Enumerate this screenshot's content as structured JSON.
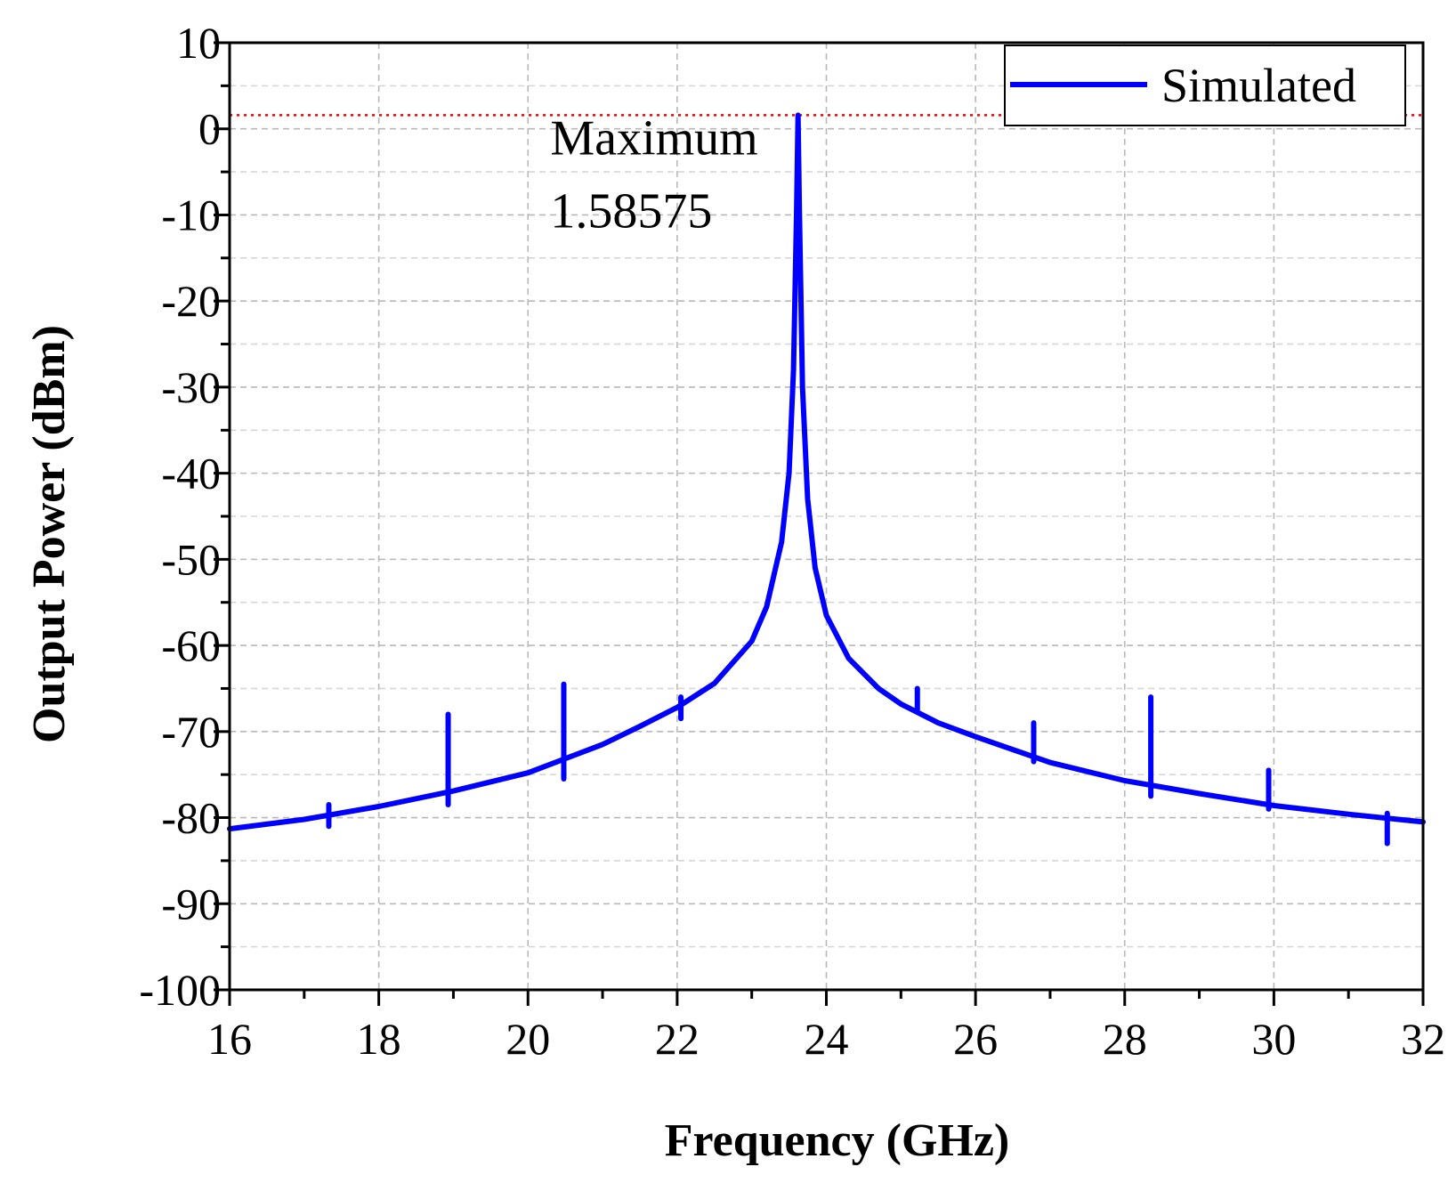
{
  "chart_data": {
    "type": "line",
    "title": "",
    "xlabel": "Frequency (GHz)",
    "ylabel": "Output Power (dBm)",
    "xlim": [
      16,
      32
    ],
    "ylim": [
      -100,
      10
    ],
    "xticks": [
      16,
      18,
      20,
      22,
      24,
      26,
      28,
      30,
      32
    ],
    "yticks": [
      10,
      0,
      -10,
      -20,
      -30,
      -40,
      -50,
      -60,
      -70,
      -80,
      -90,
      -100
    ],
    "xtick_labels": [
      "16",
      "18",
      "20",
      "22",
      "24",
      "26",
      "28",
      "30",
      "32"
    ],
    "ytick_labels": [
      "10",
      "0",
      "-10",
      "-20",
      "-30",
      "-40",
      "-50",
      "-60",
      "-70",
      "-80",
      "-90",
      "-100"
    ],
    "grid": true,
    "legend": {
      "position": "top-right",
      "entries": [
        "Simulated"
      ]
    },
    "series": [
      {
        "name": "Simulated",
        "color": "#0000ff",
        "peak": {
          "x": 23.62,
          "y": 1.58575
        },
        "x": [
          16.0,
          17.0,
          18.0,
          19.0,
          20.0,
          21.0,
          21.5,
          22.0,
          22.5,
          23.0,
          23.2,
          23.4,
          23.5,
          23.56,
          23.6,
          23.62,
          23.64,
          23.68,
          23.75,
          23.85,
          24.0,
          24.3,
          24.7,
          25.0,
          25.5,
          26.0,
          27.0,
          28.0,
          29.0,
          30.0,
          31.0,
          32.0
        ],
        "y": [
          -81.3,
          -80.2,
          -78.7,
          -76.9,
          -74.8,
          -71.5,
          -69.4,
          -67.2,
          -64.4,
          -59.5,
          -55.5,
          -48.0,
          -40.0,
          -28.0,
          -10.0,
          1.58575,
          -10.0,
          -30.0,
          -43.0,
          -51.0,
          -56.5,
          -61.5,
          -65.0,
          -66.8,
          -69.0,
          -70.6,
          -73.6,
          -75.7,
          -77.2,
          -78.6,
          -79.6,
          -80.5
        ]
      }
    ],
    "spikes": [
      {
        "x": 17.33,
        "top": -78.5,
        "bottom": -81.0
      },
      {
        "x": 18.93,
        "top": -68.0,
        "bottom": -78.5
      },
      {
        "x": 20.48,
        "top": -64.5,
        "bottom": -75.5
      },
      {
        "x": 22.05,
        "top": -66.0,
        "bottom": -68.5
      },
      {
        "x": 25.22,
        "top": -65.0,
        "bottom": -67.5
      },
      {
        "x": 26.78,
        "top": -69.0,
        "bottom": -73.5
      },
      {
        "x": 28.35,
        "top": -66.0,
        "bottom": -77.5
      },
      {
        "x": 29.93,
        "top": -74.5,
        "bottom": -79.0
      },
      {
        "x": 31.52,
        "top": -79.5,
        "bottom": -83.0
      }
    ],
    "reference_line": {
      "y": 1.58575,
      "color": "#ff0000",
      "style": "dotted"
    },
    "annotations": [
      {
        "line1": "Maximum",
        "line2": "1.58575",
        "x": 20.3,
        "y": -3.0
      }
    ]
  }
}
